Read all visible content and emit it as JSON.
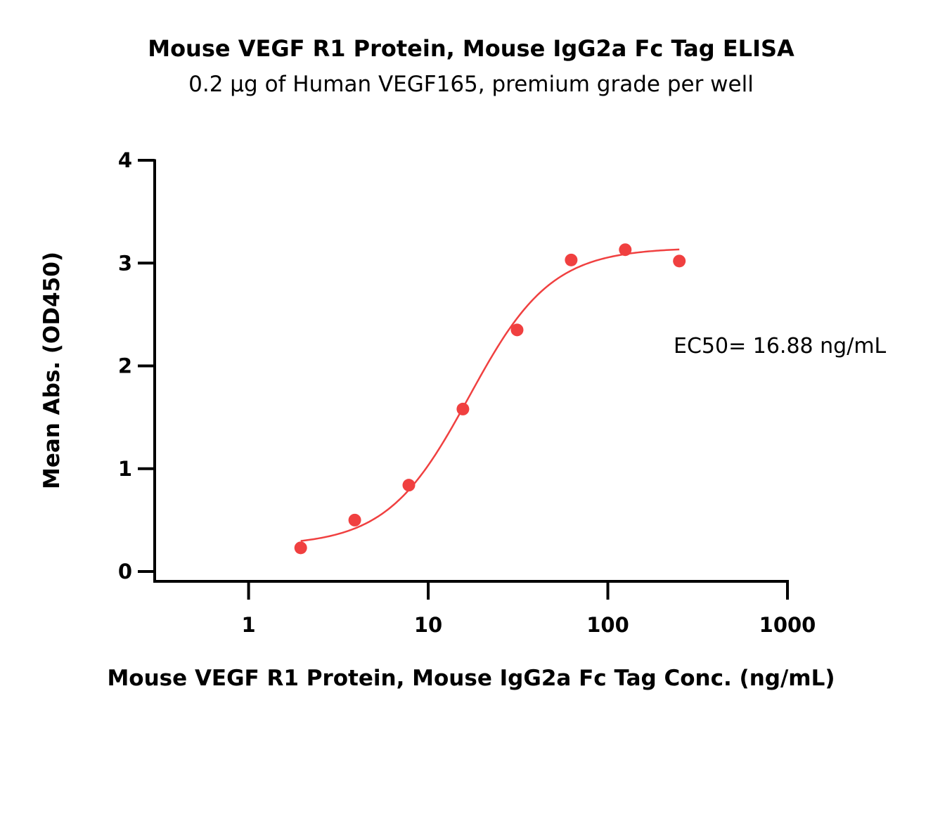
{
  "chart_data": {
    "type": "scatter",
    "title": "Mouse VEGF R1 Protein, Mouse IgG2a Fc Tag ELISA",
    "subtitle": "0.2 μg of Human VEGF165, premium grade per well",
    "xlabel": "Mouse VEGF R1 Protein, Mouse IgG2a Fc Tag Conc. (ng/mL)",
    "ylabel": "Mean Abs. (OD450)",
    "xscale": "log",
    "xlim": [
      0.3,
      1000
    ],
    "ylim": [
      0,
      4
    ],
    "x_ticks": [
      1,
      10,
      100,
      1000
    ],
    "x_tick_labels": [
      "1",
      "10",
      "100",
      "1000"
    ],
    "y_ticks": [
      0,
      1,
      2,
      3,
      4
    ],
    "y_tick_labels": [
      "0",
      "1",
      "2",
      "3",
      "4"
    ],
    "grid": false,
    "series_color": "#f04040",
    "points": {
      "x": [
        1.95,
        3.9,
        7.8,
        15.6,
        31.25,
        62.5,
        125,
        250
      ],
      "y": [
        0.23,
        0.5,
        0.84,
        1.58,
        2.35,
        3.03,
        3.13,
        3.02
      ]
    },
    "fit": {
      "model": "4PL",
      "bottom": 0.25,
      "top": 3.15,
      "ec50": 16.88,
      "hill": 1.9,
      "x_range": [
        1.95,
        250
      ]
    },
    "annotation": "EC50= 16.88 ng/mL"
  }
}
